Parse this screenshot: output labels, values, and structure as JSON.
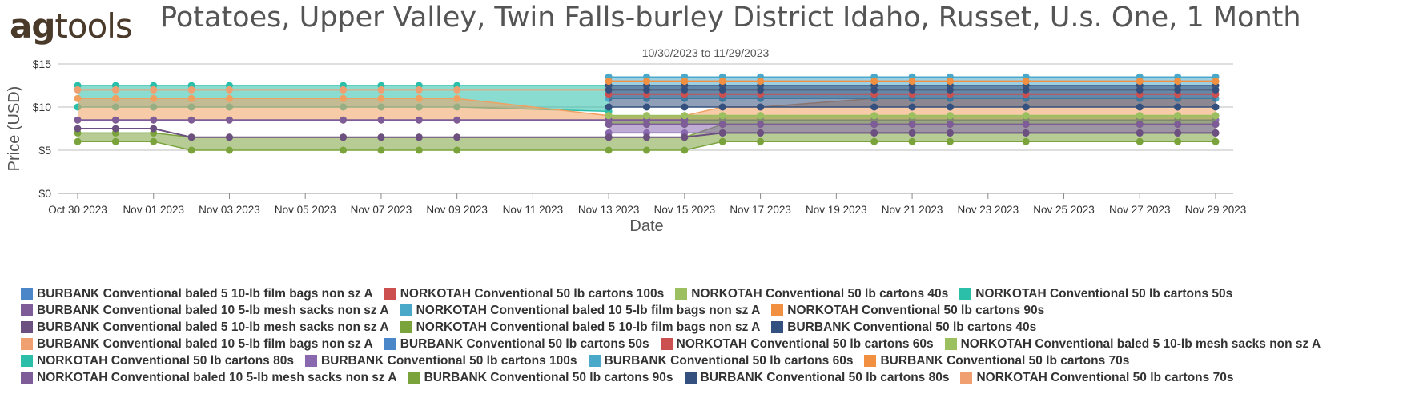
{
  "logo": {
    "part1": "ag",
    "part2": "tools"
  },
  "chart_data": {
    "type": "area",
    "title": "Potatoes, Upper Valley, Twin Falls-burley District Idaho, Russet, U.s. One, 1 Month",
    "subtitle": "10/30/2023 to 11/29/2023",
    "xlabel": "Date",
    "ylabel": "Price (USD)",
    "ylim": [
      0,
      15
    ],
    "y_ticks": [
      "$0",
      "$5",
      "$10",
      "$15"
    ],
    "x_range": [
      "2023-10-30",
      "2023-11-29"
    ],
    "x_ticks": [
      {
        "date": "2023-10-30",
        "label": "Oct 30 2023"
      },
      {
        "date": "2023-11-01",
        "label": "Nov 01 2023"
      },
      {
        "date": "2023-11-03",
        "label": "Nov 03 2023"
      },
      {
        "date": "2023-11-05",
        "label": "Nov 05 2023"
      },
      {
        "date": "2023-11-07",
        "label": "Nov 07 2023"
      },
      {
        "date": "2023-11-09",
        "label": "Nov 09 2023"
      },
      {
        "date": "2023-11-11",
        "label": "Nov 11 2023"
      },
      {
        "date": "2023-11-13",
        "label": "Nov 13 2023"
      },
      {
        "date": "2023-11-15",
        "label": "Nov 15 2023"
      },
      {
        "date": "2023-11-17",
        "label": "Nov 17 2023"
      },
      {
        "date": "2023-11-19",
        "label": "Nov 19 2023"
      },
      {
        "date": "2023-11-21",
        "label": "Nov 21 2023"
      },
      {
        "date": "2023-11-23",
        "label": "Nov 23 2023"
      },
      {
        "date": "2023-11-25",
        "label": "Nov 25 2023"
      },
      {
        "date": "2023-11-27",
        "label": "Nov 27 2023"
      },
      {
        "date": "2023-11-29",
        "label": "Nov 29 2023"
      }
    ],
    "grid": true,
    "legend_position": "bottom",
    "band_series": [
      {
        "name": "NORKOTAH Conventional 50 lb cartons 50s",
        "color": "#2bbfaa",
        "dates": [
          "2023-10-30",
          "2023-10-31",
          "2023-11-01",
          "2023-11-02",
          "2023-11-03",
          "2023-11-06",
          "2023-11-07",
          "2023-11-08",
          "2023-11-09",
          "2023-11-13"
        ],
        "low": [
          10,
          10,
          10,
          10,
          10,
          10,
          10,
          10,
          10,
          9.5
        ],
        "high": [
          12.5,
          12.5,
          12.5,
          12.5,
          12.5,
          12.5,
          12.5,
          12.5,
          12.5,
          12.5
        ]
      },
      {
        "name": "NORKOTAH Conventional 50 lb cartons 90s",
        "color": "#f0a060",
        "dates": [
          "2023-10-30",
          "2023-10-31",
          "2023-11-01",
          "2023-11-02",
          "2023-11-03",
          "2023-11-06",
          "2023-11-07",
          "2023-11-08",
          "2023-11-09",
          "2023-11-13",
          "2023-11-14",
          "2023-11-15",
          "2023-11-16",
          "2023-11-17",
          "2023-11-20",
          "2023-11-21",
          "2023-11-22",
          "2023-11-24",
          "2023-11-27",
          "2023-11-28",
          "2023-11-29"
        ],
        "low": [
          8.5,
          8.5,
          8.5,
          8.5,
          8.5,
          8.5,
          8.5,
          8.5,
          8.5,
          8.5,
          8.5,
          8.5,
          8.5,
          8.5,
          8.5,
          8.5,
          8.5,
          8.5,
          8.5,
          8.5,
          8.5
        ],
        "high": [
          11,
          11,
          11,
          11,
          11,
          11,
          11,
          11,
          11,
          9,
          9,
          9,
          10,
          10,
          11,
          11,
          11,
          11,
          11,
          11,
          11
        ]
      },
      {
        "name": "NORKOTAH Conventional baled 5 10-lb film bags non sz A",
        "color": "#7aa33c",
        "dates": [
          "2023-10-30",
          "2023-10-31",
          "2023-11-01",
          "2023-11-02",
          "2023-11-03",
          "2023-11-06",
          "2023-11-07",
          "2023-11-08",
          "2023-11-09",
          "2023-11-13",
          "2023-11-14",
          "2023-11-15",
          "2023-11-16",
          "2023-11-17",
          "2023-11-20",
          "2023-11-21",
          "2023-11-22",
          "2023-11-24",
          "2023-11-27",
          "2023-11-28",
          "2023-11-29"
        ],
        "low": [
          6,
          6,
          6,
          5,
          5,
          5,
          5,
          5,
          5,
          5,
          5,
          5,
          6,
          6,
          6,
          6,
          6,
          6,
          6,
          6,
          6
        ],
        "high": [
          7,
          7,
          7,
          6.5,
          6.5,
          6.5,
          6.5,
          6.5,
          6.5,
          6.5,
          6.5,
          6.5,
          8,
          8,
          8,
          8,
          8,
          8,
          8,
          8,
          8
        ]
      },
      {
        "name": "BURBANK Conventional 50 lb cartons 60s",
        "color": "#4aa8c8",
        "dates": [
          "2023-11-13",
          "2023-11-14",
          "2023-11-15",
          "2023-11-16",
          "2023-11-17",
          "2023-11-20",
          "2023-11-21",
          "2023-11-22",
          "2023-11-24",
          "2023-11-27",
          "2023-11-28",
          "2023-11-29"
        ],
        "low": [
          11,
          11,
          11,
          11,
          11,
          11,
          11,
          11,
          11,
          11,
          11,
          11
        ],
        "high": [
          13.5,
          13.5,
          13.5,
          13.5,
          13.5,
          13.5,
          13.5,
          13.5,
          13.5,
          13.5,
          13.5,
          13.5
        ]
      },
      {
        "name": "BURBANK Conventional 50 lb cartons 80s",
        "color": "#34507e",
        "dates": [
          "2023-11-13",
          "2023-11-14",
          "2023-11-15",
          "2023-11-16",
          "2023-11-17",
          "2023-11-20",
          "2023-11-21",
          "2023-11-22",
          "2023-11-24",
          "2023-11-27",
          "2023-11-28",
          "2023-11-29"
        ],
        "low": [
          10,
          10,
          10,
          10,
          10,
          10,
          10,
          10,
          10,
          10,
          10,
          10
        ],
        "high": [
          12.5,
          12.5,
          12.5,
          12.5,
          12.5,
          12.5,
          12.5,
          12.5,
          12.5,
          12.5,
          12.5,
          12.5
        ]
      },
      {
        "name": "BURBANK Conventional 50 lb cartons 100s",
        "color": "#8a68b0",
        "dates": [
          "2023-11-13",
          "2023-11-14",
          "2023-11-15",
          "2023-11-16",
          "2023-11-17",
          "2023-11-20",
          "2023-11-21",
          "2023-11-22",
          "2023-11-24",
          "2023-11-27",
          "2023-11-28",
          "2023-11-29"
        ],
        "low": [
          7,
          7,
          7,
          7,
          7,
          7,
          7,
          7,
          7,
          7,
          7,
          7
        ],
        "high": [
          8.5,
          8.5,
          8.5,
          8.5,
          8.5,
          8.5,
          8.5,
          8.5,
          8.5,
          8.5,
          8.5,
          8.5
        ]
      },
      {
        "name": "BURBANK Conventional 50 lb cartons 90s",
        "color": "#7aa33c",
        "dates": [
          "2023-11-13",
          "2023-11-14",
          "2023-11-15",
          "2023-11-16",
          "2023-11-17",
          "2023-11-20",
          "2023-11-21",
          "2023-11-22",
          "2023-11-24",
          "2023-11-27",
          "2023-11-28",
          "2023-11-29"
        ],
        "low": [
          8,
          8,
          8,
          8,
          8,
          8,
          8,
          8,
          8,
          8,
          8,
          8
        ],
        "high": [
          9,
          9,
          9,
          9,
          9,
          9,
          9,
          9,
          9,
          9,
          9,
          9
        ]
      }
    ],
    "line_series": [
      {
        "name": "BURBANK Conventional baled 10 5-lb mesh sacks non sz A",
        "color": "#7d5c98",
        "dates": [
          "2023-10-30",
          "2023-10-31",
          "2023-11-01",
          "2023-11-02",
          "2023-11-03",
          "2023-11-06",
          "2023-11-07",
          "2023-11-08",
          "2023-11-09",
          "2023-11-13",
          "2023-11-14",
          "2023-11-15"
        ],
        "values": [
          8.5,
          8.5,
          8.5,
          8.5,
          8.5,
          8.5,
          8.5,
          8.5,
          8.5,
          8.5,
          8.5,
          8.5
        ]
      },
      {
        "name": "BURBANK Conventional baled 5 10-lb mesh sacks non sz A",
        "color": "#6b5080",
        "dates": [
          "2023-10-30",
          "2023-10-31",
          "2023-11-01",
          "2023-11-02",
          "2023-11-03",
          "2023-11-06",
          "2023-11-07",
          "2023-11-08",
          "2023-11-09",
          "2023-11-13",
          "2023-11-14",
          "2023-11-15",
          "2023-11-16",
          "2023-11-17",
          "2023-11-20",
          "2023-11-21",
          "2023-11-22",
          "2023-11-24",
          "2023-11-27",
          "2023-11-28",
          "2023-11-29"
        ],
        "values": [
          7.5,
          7.5,
          7.5,
          6.5,
          6.5,
          6.5,
          6.5,
          6.5,
          6.5,
          6.5,
          6.5,
          6.5,
          7,
          7,
          7,
          7,
          7,
          7,
          7,
          7,
          7
        ]
      },
      {
        "name": "NORKOTAH Conventional 50 lb cartons 70s",
        "color": "#f0a070",
        "dates": [
          "2023-10-30",
          "2023-10-31",
          "2023-11-01",
          "2023-11-02",
          "2023-11-03",
          "2023-11-06",
          "2023-11-07",
          "2023-11-08",
          "2023-11-09",
          "2023-11-13",
          "2023-11-14",
          "2023-11-15",
          "2023-11-16",
          "2023-11-17",
          "2023-11-20",
          "2023-11-21",
          "2023-11-22",
          "2023-11-24",
          "2023-11-27",
          "2023-11-28",
          "2023-11-29"
        ],
        "values": [
          12,
          12,
          12,
          12,
          12,
          12,
          12,
          12,
          12,
          12,
          12,
          12,
          12,
          12,
          12,
          12,
          12,
          12,
          12,
          12,
          12
        ]
      },
      {
        "name": "NORKOTAH Conventional 50 lb cartons 60s",
        "color": "#cc5050",
        "dates": [
          "2023-11-13",
          "2023-11-14",
          "2023-11-15",
          "2023-11-16",
          "2023-11-17",
          "2023-11-20",
          "2023-11-21",
          "2023-11-22",
          "2023-11-24",
          "2023-11-27",
          "2023-11-28",
          "2023-11-29"
        ],
        "values": [
          11.5,
          11.5,
          11.5,
          11.5,
          11.5,
          11.5,
          11.5,
          11.5,
          11.5,
          11.5,
          11.5,
          11.5
        ]
      },
      {
        "name": "BURBANK Conventional 50 lb cartons 70s",
        "color": "#f09040",
        "dates": [
          "2023-11-13",
          "2023-11-14",
          "2023-11-15",
          "2023-11-16",
          "2023-11-17",
          "2023-11-20",
          "2023-11-21",
          "2023-11-22",
          "2023-11-24",
          "2023-11-27",
          "2023-11-28",
          "2023-11-29"
        ],
        "values": [
          13,
          13,
          13,
          13,
          13,
          13,
          13,
          13,
          13,
          13,
          13,
          13
        ]
      },
      {
        "name": "BURBANK Conventional 50 lb cartons 40s",
        "color": "#34507e",
        "dates": [
          "2023-11-13",
          "2023-11-14",
          "2023-11-15",
          "2023-11-16",
          "2023-11-17",
          "2023-11-20",
          "2023-11-21",
          "2023-11-22",
          "2023-11-24",
          "2023-11-27",
          "2023-11-28",
          "2023-11-29"
        ],
        "values": [
          12,
          12,
          12,
          12,
          12,
          12,
          12,
          12,
          12,
          12,
          12,
          12
        ]
      },
      {
        "name": "NORKOTAH Conventional 50 lb cartons 40s",
        "color": "#9cc060",
        "dates": [
          "2023-11-13",
          "2023-11-14",
          "2023-11-15",
          "2023-11-16",
          "2023-11-17",
          "2023-11-20",
          "2023-11-21",
          "2023-11-22",
          "2023-11-24",
          "2023-11-27",
          "2023-11-28",
          "2023-11-29"
        ],
        "values": [
          9,
          9,
          9,
          9,
          9,
          9,
          9,
          9,
          9,
          9,
          9,
          9
        ]
      },
      {
        "name": "NORKOTAH Conventional baled 10 5-lb mesh sacks non sz A",
        "color": "#7d5c98",
        "dates": [
          "2023-11-13",
          "2023-11-14",
          "2023-11-15",
          "2023-11-16",
          "2023-11-17",
          "2023-11-20",
          "2023-11-21",
          "2023-11-22",
          "2023-11-24",
          "2023-11-27",
          "2023-11-28",
          "2023-11-29"
        ],
        "values": [
          8,
          8,
          8,
          8,
          8,
          8,
          8,
          8,
          8,
          8,
          8,
          8
        ]
      }
    ],
    "legend": [
      {
        "label": "BURBANK Conventional baled 5 10-lb film bags non sz A",
        "color": "#4a86c8"
      },
      {
        "label": "NORKOTAH Conventional 50 lb cartons 100s",
        "color": "#cc5050"
      },
      {
        "label": "NORKOTAH Conventional 50 lb cartons 40s",
        "color": "#9cc060"
      },
      {
        "label": "NORKOTAH Conventional 50 lb cartons 50s",
        "color": "#2bbfaa"
      },
      {
        "label": "BURBANK Conventional baled 10 5-lb mesh sacks non sz A",
        "color": "#7d5c98"
      },
      {
        "label": "NORKOTAH Conventional baled 10 5-lb film bags non sz A",
        "color": "#4aa8c8"
      },
      {
        "label": "NORKOTAH Conventional 50 lb cartons 90s",
        "color": "#f09040"
      },
      {
        "label": "BURBANK Conventional baled 5 10-lb mesh sacks non sz A",
        "color": "#6b5080"
      },
      {
        "label": "NORKOTAH Conventional baled 5 10-lb film bags non sz A",
        "color": "#7aa33c"
      },
      {
        "label": "BURBANK Conventional 50 lb cartons 40s",
        "color": "#34507e"
      },
      {
        "label": "BURBANK Conventional baled 10 5-lb film bags non sz A",
        "color": "#f0a070"
      },
      {
        "label": "BURBANK Conventional 50 lb cartons 50s",
        "color": "#4a86c8"
      },
      {
        "label": "NORKOTAH Conventional 50 lb cartons 60s",
        "color": "#cc5050"
      },
      {
        "label": "NORKOTAH Conventional baled 5 10-lb mesh sacks non sz A",
        "color": "#9cc060"
      },
      {
        "label": "NORKOTAH Conventional 50 lb cartons 80s",
        "color": "#2bbfaa"
      },
      {
        "label": "BURBANK Conventional 50 lb cartons 100s",
        "color": "#8a68b0"
      },
      {
        "label": "BURBANK Conventional 50 lb cartons 60s",
        "color": "#4aa8c8"
      },
      {
        "label": "BURBANK Conventional 50 lb cartons 70s",
        "color": "#f09040"
      },
      {
        "label": "NORKOTAH Conventional baled 10 5-lb mesh sacks non sz A",
        "color": "#7d5c98"
      },
      {
        "label": "BURBANK Conventional 50 lb cartons 90s",
        "color": "#7aa33c"
      },
      {
        "label": "BURBANK Conventional 50 lb cartons 80s",
        "color": "#34507e"
      },
      {
        "label": "NORKOTAH Conventional 50 lb cartons 70s",
        "color": "#f0a070"
      }
    ]
  }
}
